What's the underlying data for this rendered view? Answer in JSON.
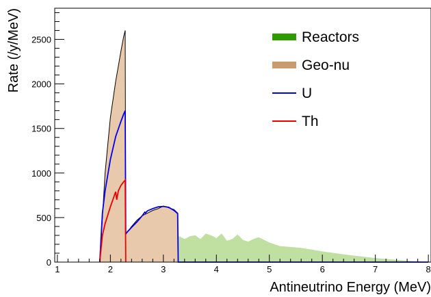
{
  "chart_data": {
    "type": "area",
    "xlabel": "Antineutrino Energy (MeV)",
    "ylabel": "Rate (/y/MeV)",
    "xlim": [
      0.95,
      8.05
    ],
    "ylim": [
      0,
      2850
    ],
    "x_ticks": [
      1,
      2,
      3,
      4,
      5,
      6,
      7,
      8
    ],
    "y_ticks": [
      0,
      500,
      1000,
      1500,
      2000,
      2500
    ],
    "legend_position": "top-right",
    "series": [
      {
        "name": "Reactors",
        "style": "filled",
        "color": "#2e9b00",
        "fill_color": "#bfe0a0",
        "x": [
          1.8,
          1.9,
          2.0,
          2.1,
          2.2,
          2.3,
          2.4,
          2.5,
          2.6,
          2.7,
          2.8,
          2.9,
          3.0,
          3.1,
          3.2,
          3.3,
          3.4,
          3.5,
          3.6,
          3.7,
          3.8,
          3.9,
          4.0,
          4.1,
          4.2,
          4.3,
          4.4,
          4.5,
          4.6,
          4.7,
          4.8,
          4.9,
          5.0,
          5.2,
          5.4,
          5.6,
          5.8,
          6.0,
          6.5,
          7.0,
          7.5,
          8.0
        ],
        "values": [
          0,
          60,
          120,
          180,
          160,
          250,
          200,
          270,
          220,
          270,
          230,
          280,
          240,
          290,
          250,
          290,
          260,
          290,
          300,
          260,
          320,
          300,
          270,
          320,
          240,
          260,
          310,
          250,
          230,
          260,
          280,
          250,
          220,
          180,
          170,
          160,
          140,
          120,
          80,
          45,
          20,
          0
        ]
      },
      {
        "name": "Geo-nu",
        "style": "filled",
        "color": "#000000",
        "fill_color": "#e8c9ab",
        "x": [
          1.8,
          1.9,
          2.0,
          2.1,
          2.15,
          2.2,
          2.25,
          2.28,
          2.29,
          2.4,
          2.5,
          2.6,
          2.7,
          2.8,
          2.9,
          3.0,
          3.1,
          3.2,
          3.27,
          3.28
        ],
        "values": [
          0,
          1000,
          1620,
          2030,
          2200,
          2370,
          2530,
          2600,
          310,
          400,
          470,
          520,
          550,
          580,
          600,
          630,
          610,
          590,
          550,
          0
        ]
      },
      {
        "name": "U",
        "style": "line",
        "color": "#0000ee",
        "x": [
          1.8,
          1.85,
          1.9,
          2.0,
          2.1,
          2.2,
          2.25,
          2.28,
          2.29,
          2.4,
          2.5,
          2.6,
          2.65,
          2.66,
          2.7,
          2.8,
          2.9,
          3.0,
          3.1,
          3.2,
          3.27,
          3.28,
          3.5,
          4.0,
          8.0
        ],
        "values": [
          0,
          550,
          800,
          1150,
          1410,
          1580,
          1660,
          1700,
          320,
          390,
          450,
          520,
          560,
          550,
          575,
          600,
          620,
          625,
          615,
          580,
          545,
          0,
          0,
          0,
          0
        ]
      },
      {
        "name": "Th",
        "style": "line",
        "color": "#ee0000",
        "x": [
          1.8,
          1.85,
          1.9,
          2.0,
          2.1,
          2.12,
          2.15,
          2.2,
          2.25,
          2.28,
          2.29
        ],
        "values": [
          0,
          300,
          430,
          620,
          790,
          700,
          800,
          860,
          900,
          920,
          0
        ]
      }
    ]
  }
}
